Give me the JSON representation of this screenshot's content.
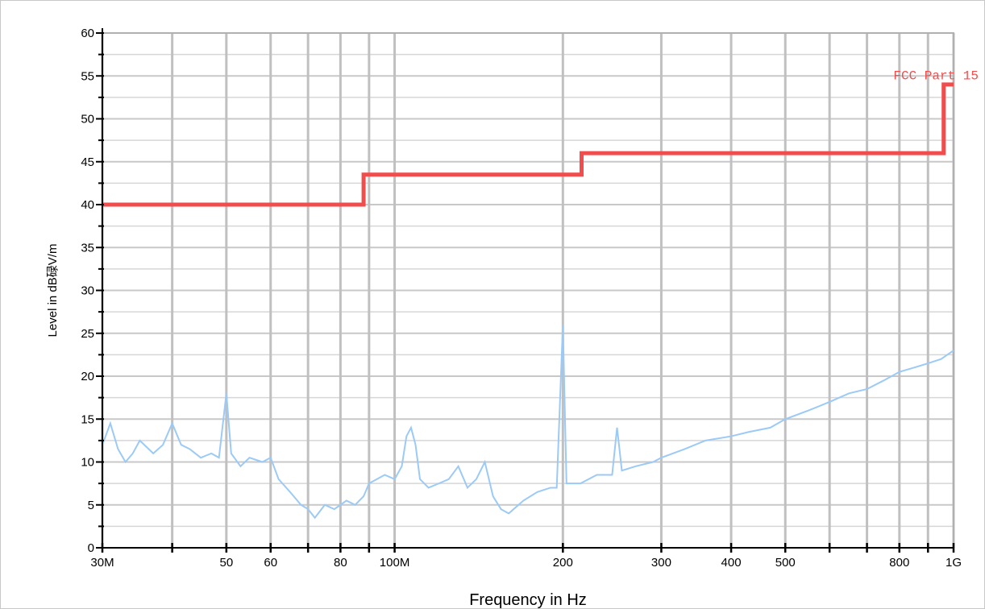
{
  "chart_data": {
    "type": "line",
    "xlabel": "Frequency in Hz",
    "ylabel": "Level in dB碌V/m",
    "x_scale": "log",
    "xlim_hz": [
      30000000,
      1000000000
    ],
    "ylim": [
      0,
      60
    ],
    "grid": true,
    "x_tick_labels": [
      {
        "value": 30000000,
        "label": "30M"
      },
      {
        "value": 50000000,
        "label": "50"
      },
      {
        "value": 60000000,
        "label": "60"
      },
      {
        "value": 80000000,
        "label": "80"
      },
      {
        "value": 100000000,
        "label": "100M"
      },
      {
        "value": 200000000,
        "label": "200"
      },
      {
        "value": 300000000,
        "label": "300"
      },
      {
        "value": 400000000,
        "label": "400"
      },
      {
        "value": 500000000,
        "label": "500"
      },
      {
        "value": 800000000,
        "label": "800"
      },
      {
        "value": 1000000000,
        "label": "1G"
      }
    ],
    "x_grid_hz": [
      30000000,
      40000000,
      50000000,
      60000000,
      70000000,
      80000000,
      90000000,
      100000000,
      200000000,
      300000000,
      400000000,
      500000000,
      600000000,
      700000000,
      800000000,
      900000000,
      1000000000
    ],
    "y_ticks": [
      0,
      5,
      10,
      15,
      20,
      25,
      30,
      35,
      40,
      45,
      50,
      55,
      60
    ],
    "series": [
      {
        "name": "FCC Part 15",
        "color": "#f24d4d",
        "kind": "step",
        "points": [
          [
            30000000,
            40
          ],
          [
            88000000,
            40
          ],
          [
            88000000,
            43.5
          ],
          [
            216000000,
            43.5
          ],
          [
            216000000,
            46
          ],
          [
            960000000,
            46
          ],
          [
            960000000,
            54
          ],
          [
            1000000000,
            54
          ]
        ]
      },
      {
        "name": "",
        "color": "#9ccaf7",
        "kind": "trace",
        "points": [
          [
            30000000,
            12
          ],
          [
            31000000,
            14.5
          ],
          [
            32000000,
            11.5
          ],
          [
            33000000,
            10
          ],
          [
            34000000,
            11
          ],
          [
            35000000,
            12.5
          ],
          [
            37000000,
            11
          ],
          [
            38500000,
            12
          ],
          [
            40000000,
            14.5
          ],
          [
            41500000,
            12
          ],
          [
            43000000,
            11.5
          ],
          [
            45000000,
            10.5
          ],
          [
            47000000,
            11
          ],
          [
            48500000,
            10.5
          ],
          [
            50000000,
            18
          ],
          [
            51000000,
            11
          ],
          [
            53000000,
            9.5
          ],
          [
            55000000,
            10.5
          ],
          [
            58000000,
            10
          ],
          [
            60000000,
            10.5
          ],
          [
            62000000,
            8
          ],
          [
            65000000,
            6.5
          ],
          [
            68000000,
            5
          ],
          [
            70000000,
            4.5
          ],
          [
            72000000,
            3.5
          ],
          [
            75000000,
            5
          ],
          [
            78000000,
            4.5
          ],
          [
            80000000,
            5
          ],
          [
            82000000,
            5.5
          ],
          [
            85000000,
            5
          ],
          [
            88000000,
            6
          ],
          [
            90000000,
            7.5
          ],
          [
            93000000,
            8
          ],
          [
            96000000,
            8.5
          ],
          [
            100000000,
            8
          ],
          [
            103000000,
            9.5
          ],
          [
            105000000,
            13
          ],
          [
            107000000,
            14
          ],
          [
            109000000,
            12
          ],
          [
            111000000,
            8
          ],
          [
            115000000,
            7
          ],
          [
            120000000,
            7.5
          ],
          [
            125000000,
            8
          ],
          [
            130000000,
            9.5
          ],
          [
            135000000,
            7
          ],
          [
            140000000,
            8
          ],
          [
            145000000,
            10
          ],
          [
            150000000,
            6
          ],
          [
            155000000,
            4.5
          ],
          [
            160000000,
            4
          ],
          [
            170000000,
            5.5
          ],
          [
            180000000,
            6.5
          ],
          [
            190000000,
            7
          ],
          [
            195000000,
            7
          ],
          [
            200000000,
            26
          ],
          [
            203000000,
            7.5
          ],
          [
            215000000,
            7.5
          ],
          [
            230000000,
            8.5
          ],
          [
            245000000,
            8.5
          ],
          [
            250000000,
            14
          ],
          [
            255000000,
            9
          ],
          [
            270000000,
            9.5
          ],
          [
            290000000,
            10
          ],
          [
            300000000,
            10.5
          ],
          [
            330000000,
            11.5
          ],
          [
            360000000,
            12.5
          ],
          [
            400000000,
            13
          ],
          [
            430000000,
            13.5
          ],
          [
            470000000,
            14
          ],
          [
            500000000,
            15
          ],
          [
            550000000,
            16
          ],
          [
            600000000,
            17
          ],
          [
            650000000,
            18
          ],
          [
            700000000,
            18.5
          ],
          [
            750000000,
            19.5
          ],
          [
            800000000,
            20.5
          ],
          [
            850000000,
            21
          ],
          [
            900000000,
            21.5
          ],
          [
            950000000,
            22
          ],
          [
            1000000000,
            23
          ]
        ]
      }
    ]
  }
}
